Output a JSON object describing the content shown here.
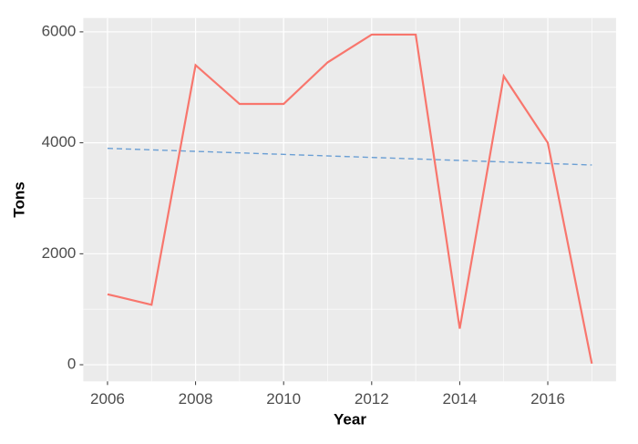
{
  "chart_data": {
    "type": "line",
    "x_label": "Year",
    "y_label": "Tons",
    "x": [
      2006,
      2007,
      2008,
      2009,
      2010,
      2011,
      2012,
      2013,
      2014,
      2015,
      2016,
      2017
    ],
    "series": [
      {
        "color": "#f8766d",
        "values": [
          1270,
          1080,
          5400,
          4700,
          4700,
          5450,
          5950,
          5950,
          650,
          5200,
          4000,
          20
        ]
      }
    ],
    "trend": {
      "x": [
        2006,
        2017
      ],
      "values": [
        3900,
        3600
      ],
      "color": "#6b9fd4",
      "dashed": true
    },
    "xlim": [
      2005.45,
      2017.55
    ],
    "xticks": [
      2006,
      2008,
      2010,
      2012,
      2014,
      2016
    ],
    "ylim": [
      -300,
      6250
    ],
    "yticks": [
      0,
      2000,
      4000,
      6000
    ],
    "grid": true,
    "minor_grid": true,
    "panel_color": "#ebebeb"
  }
}
